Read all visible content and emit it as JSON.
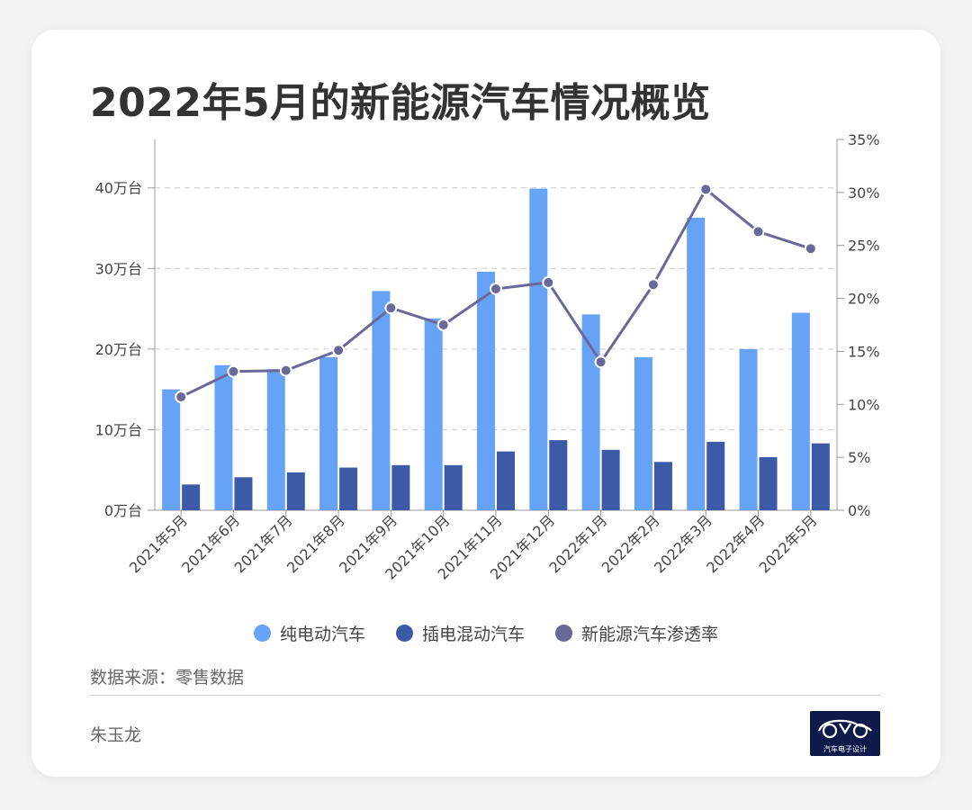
{
  "title": "2022年5月的新能源汽车情况概览",
  "source": "数据来源：零售数据",
  "author": "朱玉龙",
  "logo": {
    "icon": "car-outline-icon",
    "text": "汽车电子设计"
  },
  "colors": {
    "bev": "#66a3f7",
    "phev": "#3c5aa6",
    "penetration": "#6a6799"
  },
  "chart_data": {
    "type": "bar",
    "categories": [
      "2021年5月",
      "2021年6月",
      "2021年7月",
      "2021年8月",
      "2021年9月",
      "2021年10月",
      "2021年11月",
      "2021年12月",
      "2022年1月",
      "2022年2月",
      "2022年3月",
      "2022年4月",
      "2022年5月"
    ],
    "series": [
      {
        "name": "纯电动汽车",
        "type": "bar",
        "axis": "left",
        "values": [
          15.0,
          18.0,
          17.5,
          19.0,
          27.2,
          23.8,
          29.6,
          39.9,
          24.3,
          19.0,
          36.3,
          20.0,
          24.5
        ]
      },
      {
        "name": "插电混动汽车",
        "type": "bar",
        "axis": "left",
        "values": [
          3.2,
          4.1,
          4.7,
          5.3,
          5.6,
          5.6,
          7.3,
          8.7,
          7.5,
          6.0,
          8.5,
          6.6,
          8.3
        ]
      },
      {
        "name": "新能源汽车渗透率",
        "type": "line",
        "axis": "right",
        "values": [
          10.7,
          13.1,
          13.2,
          15.1,
          19.1,
          17.5,
          20.9,
          21.5,
          14.0,
          21.3,
          30.3,
          26.3,
          24.7
        ]
      }
    ],
    "y_left": {
      "ticks": [
        0,
        10,
        20,
        30,
        40
      ],
      "tick_labels": [
        "0万台",
        "10万台",
        "20万台",
        "30万台",
        "40万台"
      ],
      "ylim": [
        0,
        46
      ],
      "gridlines": "dashed"
    },
    "y_right": {
      "ticks": [
        0,
        5,
        10,
        15,
        20,
        25,
        30,
        35
      ],
      "tick_labels": [
        "0%",
        "5%",
        "10%",
        "15%",
        "20%",
        "25%",
        "30%",
        "35%"
      ],
      "ylim": [
        0,
        35
      ]
    },
    "legend_position": "bottom"
  }
}
